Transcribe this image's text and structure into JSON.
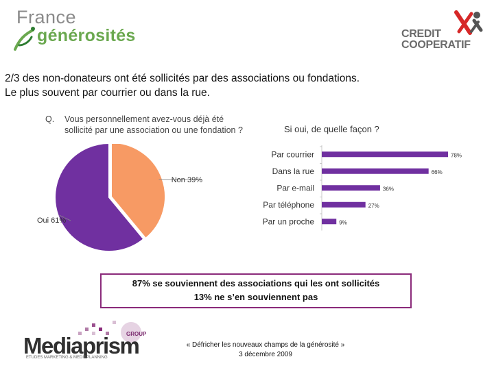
{
  "logos": {
    "france_generosites": {
      "line1": "France",
      "line2": "générosités"
    },
    "credit_cooperatif": {
      "line1": "CREDIT",
      "line2": "COOPERATIF"
    },
    "mediaprism": {
      "name": "Mediaprism",
      "group": "GROUP",
      "tagline": "ETUDES MARKETING & MEDIAPLANNING"
    }
  },
  "headline": {
    "line1": "2/3 des non-donateurs ont été sollicités par des associations ou fondations.",
    "line2": "Le plus souvent par courrier ou dans la rue."
  },
  "question": {
    "label": "Q.",
    "text": "Vous personnellement avez-vous déjà été sollicité par une association ou une fondation ?"
  },
  "chart_data": [
    {
      "type": "pie",
      "title": "Vous personnellement avez-vous déjà été sollicité par une association ou une fondation ?",
      "slices": [
        {
          "label": "Oui 61%",
          "value": 61,
          "color": "#7030a0"
        },
        {
          "label": "Non 39%",
          "value": 39,
          "color": "#f79a64"
        }
      ]
    },
    {
      "type": "bar",
      "orientation": "horizontal",
      "title": "Si oui, de quelle façon ?",
      "categories": [
        "Par courrier",
        "Dans la rue",
        "Par e-mail",
        "Par téléphone",
        "Par un proche"
      ],
      "values": [
        78,
        66,
        36,
        27,
        9
      ],
      "value_labels": [
        "78%",
        "66%",
        "36%",
        "27%",
        "9%"
      ],
      "color": "#7030a0",
      "xlim": [
        0,
        100
      ]
    }
  ],
  "callout": {
    "line1": "87% se souviennent des associations qui les ont sollicités",
    "line2": "13% ne s’en souviennent pas"
  },
  "footer": {
    "line1": "« Défricher les nouveaux champs de la générosité »",
    "line2": "3 décembre 2009"
  }
}
